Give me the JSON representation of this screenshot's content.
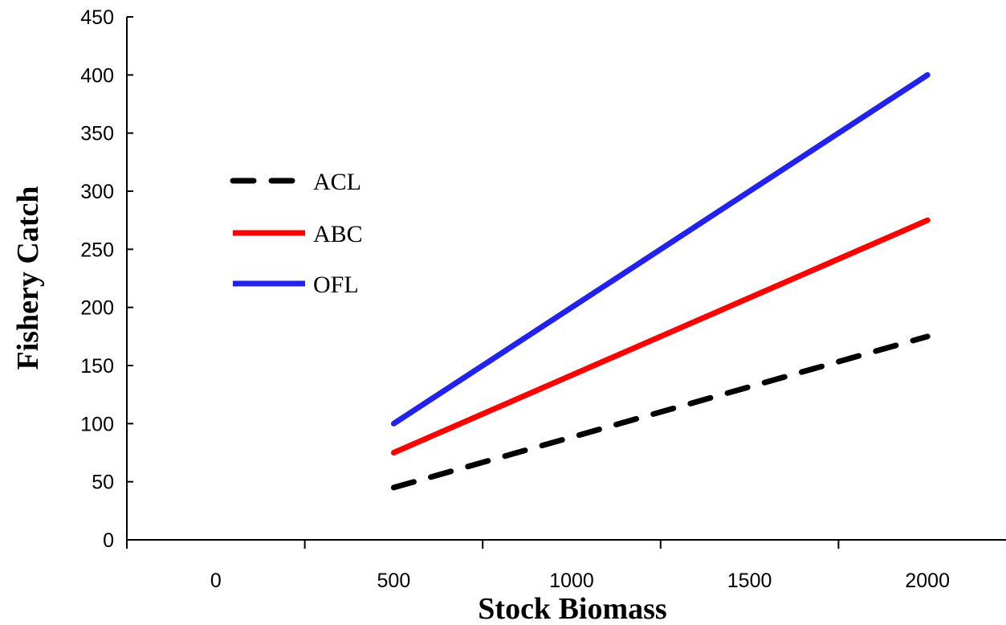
{
  "chart_data": {
    "type": "line",
    "title": "",
    "xlabel": "Stock Biomass",
    "ylabel": "Fishery Catch",
    "xlim": [
      -250,
      2250
    ],
    "ylim": [
      0,
      450
    ],
    "x_ticks": [
      0,
      500,
      1000,
      1500,
      2000
    ],
    "y_ticks": [
      0,
      50,
      100,
      150,
      200,
      250,
      300,
      350,
      400,
      450
    ],
    "grid": false,
    "legend_position": "left",
    "series": [
      {
        "name": "ACL",
        "color": "#000000",
        "dash": true,
        "x": [
          500,
          2000
        ],
        "y": [
          45,
          175
        ]
      },
      {
        "name": "ABC",
        "color": "#ff0000",
        "dash": false,
        "x": [
          500,
          2000
        ],
        "y": [
          75,
          275
        ]
      },
      {
        "name": "OFL",
        "color": "#2222ee",
        "dash": false,
        "x": [
          500,
          2000
        ],
        "y": [
          100,
          400
        ]
      }
    ]
  }
}
